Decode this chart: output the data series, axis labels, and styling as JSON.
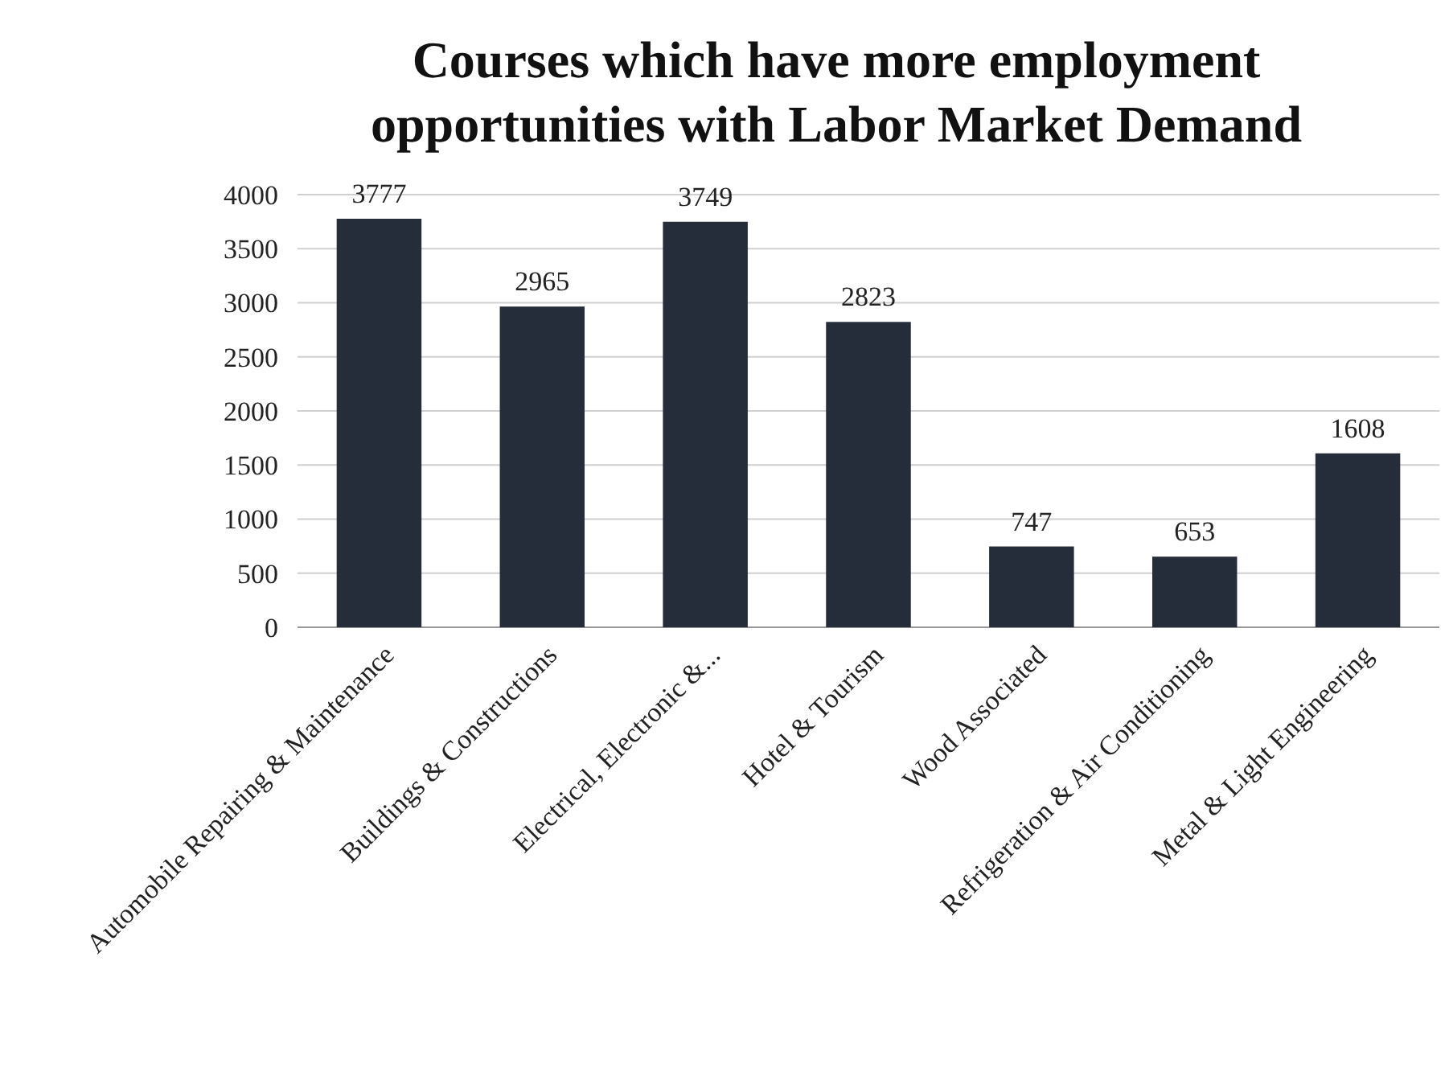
{
  "chart_data": {
    "type": "bar",
    "title": "Courses which have more employment opportunities with Labor Market Demand",
    "categories": [
      "Automobile Repairing & Maintenance",
      "Buildings & Constructions",
      "Electrical, Electronic &...",
      "Hotel & Tourism",
      "Wood Associated",
      "Refrigeration & Air Conditioning",
      "Metal & Light Engineering"
    ],
    "values": [
      3777,
      2965,
      3749,
      2823,
      747,
      653,
      1608
    ],
    "color": "#252d3a",
    "ylim": [
      0,
      4000
    ],
    "yticks": [
      0,
      500,
      1000,
      1500,
      2000,
      2500,
      3000,
      3500,
      4000
    ],
    "grid": "y",
    "data_labels": true
  }
}
